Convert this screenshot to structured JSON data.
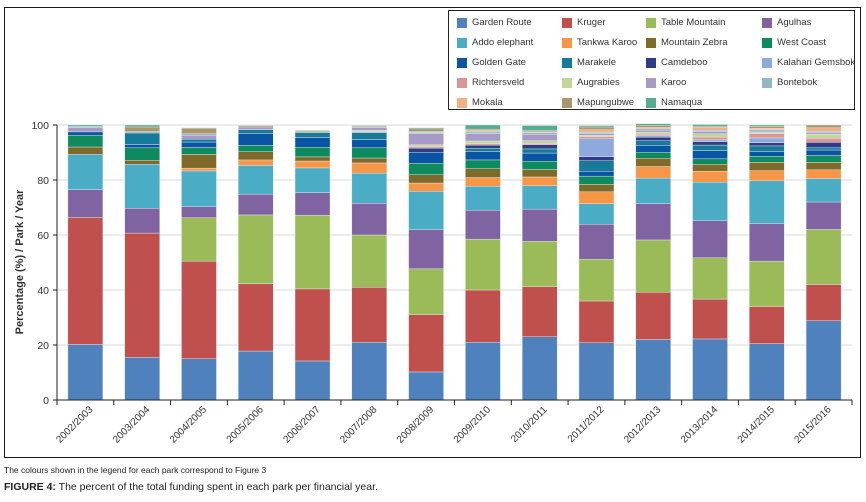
{
  "chart_data": {
    "type": "bar",
    "stacked": true,
    "title": "",
    "xlabel": "",
    "ylabel": "Percentage (%) / Park / Year",
    "ylim": [
      0,
      100
    ],
    "yticks": [
      0,
      20,
      40,
      60,
      80,
      100
    ],
    "grid": true,
    "legend_position": "top-right",
    "categories": [
      "2002/2003",
      "2003/2004",
      "2004/2005",
      "2005/2006",
      "2006/2007",
      "2007/2008",
      "2008/2009",
      "2009/2010",
      "2010/2011",
      "2011/2012",
      "2012/2013",
      "2013/2014",
      "2014/2015",
      "2015/2016"
    ],
    "series": [
      {
        "name": "Garden Route",
        "color": "#4F81BD",
        "values": [
          20.2,
          15.5,
          15.0,
          17.8,
          14.2,
          21.0,
          10.2,
          21.0,
          23.0,
          20.8,
          22.0,
          22.2,
          20.5,
          28.8
        ]
      },
      {
        "name": "Kruger",
        "color": "#C0504D",
        "values": [
          46.2,
          45.2,
          35.5,
          24.5,
          26.2,
          20.0,
          20.8,
          19.0,
          18.2,
          15.2,
          17.2,
          14.5,
          13.5,
          13.2
        ]
      },
      {
        "name": "Table Mountain",
        "color": "#9BBB59",
        "values": [
          0,
          0,
          15.8,
          25.0,
          26.8,
          19.0,
          16.7,
          18.5,
          16.5,
          15.2,
          19.0,
          15.0,
          16.5,
          20.0
        ]
      },
      {
        "name": "Agulhas",
        "color": "#8064A2",
        "values": [
          10.1,
          9.0,
          4.0,
          7.5,
          8.2,
          11.5,
          14.2,
          10.5,
          11.7,
          12.7,
          13.2,
          13.5,
          13.7,
          10.0
        ]
      },
      {
        "name": "Addo elephant",
        "color": "#4BACC6",
        "values": [
          12.8,
          16.0,
          13.0,
          10.5,
          9.0,
          11.0,
          14.0,
          8.7,
          8.5,
          7.5,
          9.3,
          14.0,
          15.5,
          8.5
        ]
      },
      {
        "name": "Tankwa Karoo",
        "color": "#F79646",
        "values": [
          0,
          0,
          1.0,
          2.0,
          2.5,
          3.7,
          3.0,
          3.2,
          3.2,
          4.3,
          4.2,
          4.0,
          3.7,
          3.2
        ]
      },
      {
        "name": "Mountain Zebra",
        "color": "#7F6A2A",
        "values": [
          2.7,
          1.5,
          5.0,
          3.0,
          1.5,
          1.8,
          3.0,
          3.2,
          2.7,
          2.7,
          3.0,
          2.5,
          3.0,
          2.7
        ]
      },
      {
        "name": "West Coast",
        "color": "#0E8A5F",
        "values": [
          4.3,
          4.5,
          2.5,
          2.3,
          3.5,
          3.7,
          4.2,
          3.2,
          3.0,
          3.0,
          2.2,
          2.0,
          2.2,
          2.5
        ]
      },
      {
        "name": "Golden Gate",
        "color": "#0A55A3",
        "values": [
          1.2,
          1.2,
          2.0,
          4.2,
          3.5,
          3.0,
          4.0,
          3.0,
          3.0,
          1.8,
          2.5,
          3.0,
          1.8,
          2.0
        ]
      },
      {
        "name": "Marakele",
        "color": "#177A99",
        "values": [
          0,
          4.2,
          1.0,
          1.5,
          1.8,
          2.5,
          0,
          1.2,
          1.5,
          3.8,
          1.7,
          2.0,
          2.0,
          0.8
        ]
      },
      {
        "name": "Camdeboo",
        "color": "#2E3D85",
        "values": [
          0,
          0,
          0,
          0,
          0,
          0,
          1.5,
          1.2,
          1.5,
          1.5,
          1.3,
          1.2,
          1.2,
          2.0
        ]
      },
      {
        "name": "Kalahari Gemsbok",
        "color": "#8EA9DB",
        "values": [
          0,
          0,
          0,
          0,
          0,
          0.4,
          0,
          0,
          0,
          6.5,
          0.5,
          0.7,
          1.7,
          0
        ]
      },
      {
        "name": "Richtersveld",
        "color": "#DA9694",
        "values": [
          0,
          0,
          0,
          0,
          0,
          0,
          0.5,
          0.5,
          0.5,
          0.8,
          0.5,
          1.0,
          1.5,
          1.5
        ]
      },
      {
        "name": "Augrabies",
        "color": "#C4D79B",
        "values": [
          0,
          0,
          0,
          0,
          0,
          0.5,
          0.7,
          1.0,
          1.0,
          0.5,
          0.8,
          1.2,
          0.5,
          1.5
        ]
      },
      {
        "name": "Karoo",
        "color": "#A89AC7",
        "values": [
          1.5,
          0,
          1.5,
          1.0,
          0,
          1.0,
          4.0,
          2.7,
          2.3,
          0.5,
          0.7,
          0.8,
          0.5,
          0.5
        ]
      },
      {
        "name": "Bontebok",
        "color": "#92B8C8",
        "values": [
          0.5,
          0.5,
          0.5,
          0,
          0,
          0.3,
          0.5,
          0.6,
          0.6,
          0.5,
          0.5,
          0.5,
          0.5,
          0.5
        ]
      },
      {
        "name": "Mokala",
        "color": "#F2B184",
        "values": [
          0,
          0,
          0,
          0,
          0,
          0,
          0.3,
          0.5,
          0.3,
          1.0,
          0.5,
          1.0,
          0.5,
          1.3
        ]
      },
      {
        "name": "Mapungubwe",
        "color": "#A9976B",
        "values": [
          0,
          1.7,
          2.0,
          0.5,
          0.5,
          0.4,
          1.0,
          0.5,
          0.5,
          1.0,
          0.8,
          0.5,
          0.7,
          1.0
        ]
      },
      {
        "name": "Namaqua",
        "color": "#55AC90",
        "values": [
          0.5,
          0.7,
          0.2,
          0.2,
          0.3,
          0.2,
          0.4,
          1.5,
          1.8,
          0.5,
          0.6,
          0.6,
          0.5,
          0
        ]
      }
    ]
  },
  "legend": {
    "items": [
      "Garden Route",
      "Kruger",
      "Table Mountain",
      "Agulhas",
      "Addo elephant",
      "Tankwa Karoo",
      "Mountain Zebra",
      "West Coast",
      "Golden Gate",
      "Marakele",
      "Camdeboo",
      "Kalahari Gemsbok",
      "Richtersveld",
      "Augrabies",
      "Karoo",
      "Bontebok",
      "Mokala",
      "Mapungubwe",
      "Namaqua"
    ]
  },
  "note": "The colours shown in the legend for each park correspond to Figure 3",
  "caption": {
    "label": "FIGURE 4:",
    "text": " The percent of the total funding spent in each park per financial year."
  }
}
